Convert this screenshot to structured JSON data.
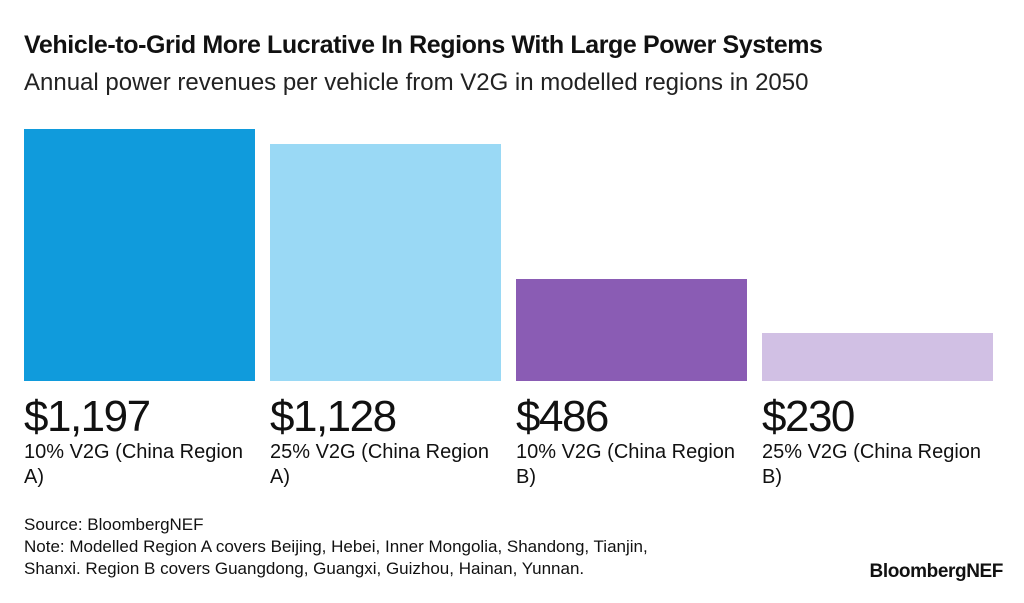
{
  "header": {
    "title": "Vehicle-to-Grid More Lucrative In Regions With Large Power Systems",
    "subtitle": "Annual power revenues per vehicle from V2G in modelled regions in 2050"
  },
  "chart_data": {
    "type": "bar",
    "title": "Vehicle-to-Grid More Lucrative In Regions With Large Power Systems",
    "subtitle": "Annual power revenues per vehicle from V2G in modelled regions in 2050",
    "categories": [
      "10% V2G (China Region A)",
      "25% V2G (China Region A)",
      "10% V2G (China Region B)",
      "25% V2G (China Region B)"
    ],
    "values": [
      1197,
      1128,
      486,
      230
    ],
    "value_labels": [
      "$1,197",
      "$1,128",
      "$486",
      "$230"
    ],
    "colors": [
      "#109bdc",
      "#9ad9f5",
      "#8a5cb4",
      "#d1c0e4"
    ],
    "xlabel": "",
    "ylabel": "",
    "ylim": [
      0,
      1197
    ],
    "grid": false,
    "legend": "none"
  },
  "footer": {
    "source": "Source: BloombergNEF",
    "note_line1": "Note: Modelled Region A covers Beijing, Hebei, Inner Mongolia, Shandong, Tianjin,",
    "note_line2": "Shanxi. Region B covers Guangdong, Guangxi, Guizhou, Hainan, Yunnan.",
    "brand": "BloombergNEF"
  }
}
